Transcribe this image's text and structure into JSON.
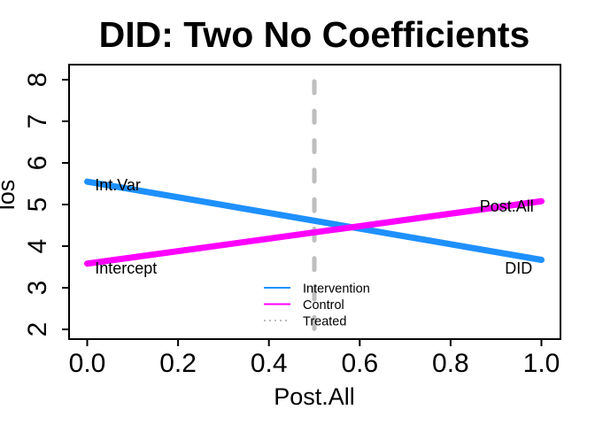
{
  "title": "DID: Two No Coefficients",
  "chart_data": {
    "type": "line",
    "title": "DID: Two No Coefficients",
    "xlabel": "Post.All",
    "ylabel": "los",
    "xlim": [
      0,
      1
    ],
    "ylim": [
      2,
      8
    ],
    "xticks": [
      0.0,
      0.2,
      0.4,
      0.6,
      0.8,
      1.0
    ],
    "xtick_labels": [
      "0.0",
      "0.2",
      "0.4",
      "0.6",
      "0.8",
      "1.0"
    ],
    "yticks": [
      2,
      3,
      4,
      5,
      6,
      7,
      8
    ],
    "ytick_labels": [
      "2",
      "3",
      "4",
      "5",
      "6",
      "7",
      "8"
    ],
    "grid": false,
    "box": true,
    "series": [
      {
        "name": "Intervention",
        "color": "#1e90ff",
        "style": "solid",
        "width": 7,
        "x": [
          0,
          1
        ],
        "y": [
          5.55,
          3.67
        ]
      },
      {
        "name": "Control",
        "color": "#ff00ff",
        "style": "solid",
        "width": 7,
        "x": [
          0,
          1
        ],
        "y": [
          3.58,
          5.08
        ]
      }
    ],
    "vline": {
      "name": "Treated",
      "x": 0.5,
      "color": "#bebebe",
      "style": "dashed",
      "width": 5
    },
    "annotations": [
      {
        "text": "Int.Var",
        "x": 0.017,
        "y": 5.468,
        "anchor": "start"
      },
      {
        "text": "Intercept",
        "x": 0.017,
        "y": 3.468,
        "anchor": "start"
      },
      {
        "text": "Post.All",
        "x": 0.983,
        "y": 4.957,
        "anchor": "end"
      },
      {
        "text": "DID",
        "x": 0.98,
        "y": 3.468,
        "anchor": "end"
      }
    ],
    "legend": {
      "position": "bottom-center-inside",
      "frame": false,
      "entries": [
        {
          "label": "Intervention",
          "color": "#1e90ff",
          "line_style": "solid"
        },
        {
          "label": "Control",
          "color": "#ff00ff",
          "line_style": "solid"
        },
        {
          "label": "Treated",
          "color": "#b4b4b4",
          "line_style": "dotted"
        }
      ]
    },
    "colors": {
      "intervention": "#1e90ff",
      "control": "#ff00ff",
      "treated_line": "#bebebe",
      "axis": "#000000",
      "background": "#ffffff"
    }
  }
}
